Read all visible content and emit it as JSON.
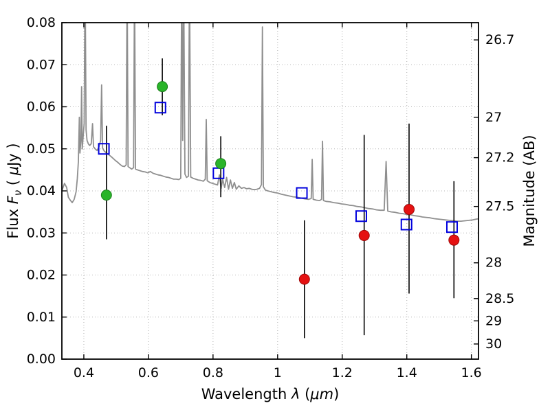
{
  "figure": {
    "background": "#ffffff",
    "frame_color": "#000000"
  },
  "chart_data": {
    "type": "line",
    "title": "",
    "xlabel": "Wavelength λ (μm)",
    "ylabel": "Flux Fν ( μJy )",
    "ylabel_right": "Magnitude (AB)",
    "xlabel_parts": [
      {
        "t": "Wavelength  "
      },
      {
        "t": "λ",
        "i": true
      },
      {
        "t": " ("
      },
      {
        "t": "μm",
        "i": true
      },
      {
        "t": ")"
      }
    ],
    "ylabel_parts": [
      {
        "t": "Flux  "
      },
      {
        "t": "F",
        "i": true
      },
      {
        "t": "ν",
        "i": true,
        "sub": true
      },
      {
        "t": " ( "
      },
      {
        "t": "μ",
        "i": true
      },
      {
        "t": "Jy )"
      }
    ],
    "ylabel_right_parts": [
      {
        "t": "Magnitude (AB)"
      }
    ],
    "x_axis": {
      "min": 0.332,
      "max": 1.622,
      "ticks": [
        {
          "v": 0.4,
          "label": "0.4"
        },
        {
          "v": 0.6,
          "label": "0.6"
        },
        {
          "v": 0.8,
          "label": "0.8"
        },
        {
          "v": 1.0,
          "label": "1"
        },
        {
          "v": 1.2,
          "label": "1.2"
        },
        {
          "v": 1.4,
          "label": "1.4"
        },
        {
          "v": 1.6,
          "label": "1.6"
        }
      ]
    },
    "y_axis": {
      "min": 0.0,
      "max": 0.08,
      "ticks": [
        {
          "v": 0.0,
          "label": "0.00"
        },
        {
          "v": 0.01,
          "label": "0.01"
        },
        {
          "v": 0.02,
          "label": "0.02"
        },
        {
          "v": 0.03,
          "label": "0.03"
        },
        {
          "v": 0.04,
          "label": "0.04"
        },
        {
          "v": 0.05,
          "label": "0.05"
        },
        {
          "v": 0.06,
          "label": "0.06"
        },
        {
          "v": 0.07,
          "label": "0.07"
        },
        {
          "v": 0.08,
          "label": "0.08"
        }
      ]
    },
    "y_axis_right": {
      "unit": "AB magnitude",
      "ticks": [
        {
          "label": "26.7",
          "flux": 0.0759
        },
        {
          "label": "27",
          "flux": 0.0575
        },
        {
          "label": "27.2",
          "flux": 0.0479
        },
        {
          "label": "27.5",
          "flux": 0.0363
        },
        {
          "label": "28",
          "flux": 0.0229
        },
        {
          "label": "28.5",
          "flux": 0.0144
        },
        {
          "label": "29",
          "flux": 0.0091
        },
        {
          "label": "30",
          "flux": 0.0036
        }
      ]
    },
    "grid": {
      "show": true,
      "linestyle": "dotted",
      "color": "#b5b5b5"
    },
    "colors": {
      "spectrum": "#8f8f8f",
      "green_points": "#2ab42a",
      "red_points": "#e51212",
      "blue_squares": "#0000dd",
      "error_bars": "#000000"
    },
    "spectrum": {
      "name": "model-galaxy-spectrum",
      "points": [
        [
          0.332,
          0.04
        ],
        [
          0.34,
          0.0418
        ],
        [
          0.347,
          0.0408
        ],
        [
          0.352,
          0.0385
        ],
        [
          0.358,
          0.0378
        ],
        [
          0.364,
          0.0372
        ],
        [
          0.37,
          0.038
        ],
        [
          0.376,
          0.0398
        ],
        [
          0.38,
          0.043
        ],
        [
          0.383,
          0.047
        ],
        [
          0.386,
          0.0575
        ],
        [
          0.388,
          0.049
        ],
        [
          0.391,
          0.052
        ],
        [
          0.393,
          0.0648
        ],
        [
          0.395,
          0.05
        ],
        [
          0.398,
          0.053
        ],
        [
          0.401,
          0.056
        ],
        [
          0.404,
          0.092
        ],
        [
          0.407,
          0.0545
        ],
        [
          0.41,
          0.052
        ],
        [
          0.414,
          0.0512
        ],
        [
          0.418,
          0.0508
        ],
        [
          0.423,
          0.0512
        ],
        [
          0.427,
          0.056
        ],
        [
          0.43,
          0.0505
        ],
        [
          0.435,
          0.05
        ],
        [
          0.441,
          0.0496
        ],
        [
          0.447,
          0.0505
        ],
        [
          0.452,
          0.052
        ],
        [
          0.455,
          0.0652
        ],
        [
          0.458,
          0.0502
        ],
        [
          0.463,
          0.0495
        ],
        [
          0.47,
          0.049
        ],
        [
          0.477,
          0.0486
        ],
        [
          0.484,
          0.0482
        ],
        [
          0.491,
          0.0477
        ],
        [
          0.498,
          0.0472
        ],
        [
          0.505,
          0.0468
        ],
        [
          0.512,
          0.0463
        ],
        [
          0.519,
          0.0459
        ],
        [
          0.526,
          0.0458
        ],
        [
          0.531,
          0.0462
        ],
        [
          0.534,
          0.092
        ],
        [
          0.537,
          0.0458
        ],
        [
          0.542,
          0.0455
        ],
        [
          0.548,
          0.0452
        ],
        [
          0.554,
          0.0455
        ],
        [
          0.557,
          0.092
        ],
        [
          0.56,
          0.0452
        ],
        [
          0.566,
          0.045
        ],
        [
          0.574,
          0.0448
        ],
        [
          0.582,
          0.0446
        ],
        [
          0.59,
          0.0445
        ],
        [
          0.598,
          0.0443
        ],
        [
          0.606,
          0.0446
        ],
        [
          0.614,
          0.0442
        ],
        [
          0.622,
          0.044
        ],
        [
          0.63,
          0.0438
        ],
        [
          0.638,
          0.0437
        ],
        [
          0.646,
          0.0435
        ],
        [
          0.654,
          0.0433
        ],
        [
          0.662,
          0.0432
        ],
        [
          0.67,
          0.043
        ],
        [
          0.678,
          0.0428
        ],
        [
          0.686,
          0.0428
        ],
        [
          0.694,
          0.0427
        ],
        [
          0.7,
          0.043
        ],
        [
          0.703,
          0.092
        ],
        [
          0.706,
          0.052
        ],
        [
          0.709,
          0.092
        ],
        [
          0.713,
          0.044
        ],
        [
          0.718,
          0.0432
        ],
        [
          0.724,
          0.0435
        ],
        [
          0.727,
          0.092
        ],
        [
          0.731,
          0.0433
        ],
        [
          0.738,
          0.043
        ],
        [
          0.746,
          0.0428
        ],
        [
          0.754,
          0.0426
        ],
        [
          0.762,
          0.0425
        ],
        [
          0.77,
          0.0423
        ],
        [
          0.776,
          0.0428
        ],
        [
          0.779,
          0.057
        ],
        [
          0.782,
          0.0424
        ],
        [
          0.79,
          0.042
        ],
        [
          0.798,
          0.0418
        ],
        [
          0.806,
          0.0416
        ],
        [
          0.814,
          0.0414
        ],
        [
          0.82,
          0.0438
        ],
        [
          0.825,
          0.0405
        ],
        [
          0.83,
          0.0428
        ],
        [
          0.836,
          0.0408
        ],
        [
          0.842,
          0.0432
        ],
        [
          0.848,
          0.0404
        ],
        [
          0.854,
          0.0426
        ],
        [
          0.86,
          0.0406
        ],
        [
          0.866,
          0.042
        ],
        [
          0.872,
          0.0404
        ],
        [
          0.88,
          0.0412
        ],
        [
          0.888,
          0.0406
        ],
        [
          0.896,
          0.0408
        ],
        [
          0.904,
          0.0405
        ],
        [
          0.912,
          0.0406
        ],
        [
          0.92,
          0.0404
        ],
        [
          0.928,
          0.0403
        ],
        [
          0.936,
          0.0404
        ],
        [
          0.944,
          0.0406
        ],
        [
          0.95,
          0.0415
        ],
        [
          0.953,
          0.079
        ],
        [
          0.956,
          0.041
        ],
        [
          0.962,
          0.0402
        ],
        [
          0.97,
          0.04
        ],
        [
          0.98,
          0.0398
        ],
        [
          0.99,
          0.0396
        ],
        [
          1.0,
          0.0395
        ],
        [
          1.012,
          0.0392
        ],
        [
          1.024,
          0.039
        ],
        [
          1.036,
          0.0388
        ],
        [
          1.048,
          0.0386
        ],
        [
          1.06,
          0.0385
        ],
        [
          1.072,
          0.0383
        ],
        [
          1.084,
          0.0381
        ],
        [
          1.096,
          0.038
        ],
        [
          1.104,
          0.0382
        ],
        [
          1.107,
          0.0475
        ],
        [
          1.11,
          0.038
        ],
        [
          1.12,
          0.0378
        ],
        [
          1.13,
          0.0377
        ],
        [
          1.136,
          0.038
        ],
        [
          1.139,
          0.0518
        ],
        [
          1.142,
          0.0377
        ],
        [
          1.15,
          0.0375
        ],
        [
          1.162,
          0.0374
        ],
        [
          1.174,
          0.0372
        ],
        [
          1.186,
          0.0371
        ],
        [
          1.198,
          0.0369
        ],
        [
          1.21,
          0.0368
        ],
        [
          1.222,
          0.0366
        ],
        [
          1.234,
          0.0365
        ],
        [
          1.246,
          0.0363
        ],
        [
          1.258,
          0.0362
        ],
        [
          1.27,
          0.036
        ],
        [
          1.282,
          0.0358
        ],
        [
          1.294,
          0.0357
        ],
        [
          1.306,
          0.0355
        ],
        [
          1.318,
          0.0354
        ],
        [
          1.33,
          0.0354
        ],
        [
          1.336,
          0.047
        ],
        [
          1.341,
          0.0352
        ],
        [
          1.352,
          0.035
        ],
        [
          1.364,
          0.0349
        ],
        [
          1.376,
          0.0347
        ],
        [
          1.388,
          0.0346
        ],
        [
          1.4,
          0.0344
        ],
        [
          1.412,
          0.0343
        ],
        [
          1.424,
          0.0341
        ],
        [
          1.436,
          0.034
        ],
        [
          1.448,
          0.0338
        ],
        [
          1.46,
          0.0337
        ],
        [
          1.472,
          0.0336
        ],
        [
          1.484,
          0.0334
        ],
        [
          1.496,
          0.0333
        ],
        [
          1.508,
          0.0332
        ],
        [
          1.52,
          0.0331
        ],
        [
          1.532,
          0.033
        ],
        [
          1.544,
          0.0329
        ],
        [
          1.556,
          0.0328
        ],
        [
          1.568,
          0.0328
        ],
        [
          1.58,
          0.0329
        ],
        [
          1.592,
          0.033
        ],
        [
          1.604,
          0.0331
        ],
        [
          1.616,
          0.0333
        ],
        [
          1.628,
          0.0334
        ]
      ]
    },
    "series": [
      {
        "name": "model-photometry-squares",
        "marker": "open-square",
        "color": "#0000dd",
        "points": [
          [
            0.462,
            0.05
          ],
          [
            0.637,
            0.0598
          ],
          [
            0.817,
            0.0442
          ],
          [
            1.075,
            0.0395
          ],
          [
            1.259,
            0.034
          ],
          [
            1.399,
            0.032
          ],
          [
            1.54,
            0.0314
          ]
        ]
      },
      {
        "name": "green-photometry-points",
        "marker": "filled-circle",
        "color": "#2ab42a",
        "edge": "#1d7e1d",
        "points": [
          [
            0.47,
            0.039
          ],
          [
            0.643,
            0.0648
          ],
          [
            0.824,
            0.0465
          ]
        ]
      },
      {
        "name": "red-photometry-points",
        "marker": "filled-circle",
        "color": "#e51212",
        "edge": "#9e0606",
        "points": [
          [
            1.083,
            0.019
          ],
          [
            1.268,
            0.0294
          ],
          [
            1.407,
            0.0356
          ],
          [
            1.546,
            0.0283
          ]
        ]
      }
    ],
    "error_bars": [
      {
        "x": 0.47,
        "lo": 0.0285,
        "hi": 0.0555
      },
      {
        "x": 0.643,
        "lo": 0.058,
        "hi": 0.0715
      },
      {
        "x": 0.824,
        "lo": 0.0385,
        "hi": 0.053
      },
      {
        "x": 1.083,
        "lo": 0.005,
        "hi": 0.033
      },
      {
        "x": 1.268,
        "lo": 0.0057,
        "hi": 0.0533
      },
      {
        "x": 1.407,
        "lo": 0.0156,
        "hi": 0.056
      },
      {
        "x": 1.546,
        "lo": 0.0145,
        "hi": 0.0423
      }
    ]
  }
}
